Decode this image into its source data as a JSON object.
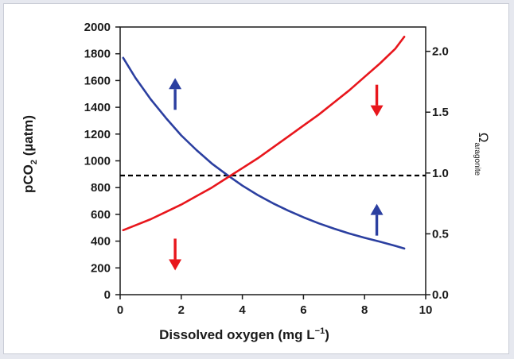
{
  "chart_data": {
    "type": "line",
    "xlabel": {
      "main": "Dissolved oxygen (mg L",
      "sup": "−1",
      "end": ")"
    },
    "ylabel": {
      "main": "pCO",
      "sub": "2",
      "end": " (µatm)"
    },
    "y2label": {
      "main": "Ω",
      "sub": "aragonite"
    },
    "xlim": [
      0,
      10
    ],
    "ylim": [
      0,
      2000
    ],
    "y2lim": [
      0.0,
      2.2
    ],
    "xticks": [
      "0",
      "2",
      "4",
      "6",
      "8",
      "10"
    ],
    "yticks": [
      "0",
      "200",
      "400",
      "600",
      "800",
      "1000",
      "1200",
      "1400",
      "1600",
      "1800",
      "2000"
    ],
    "y2ticks": [
      "0.0",
      "0.5",
      "1.0",
      "1.5",
      "2.0"
    ],
    "grid": false,
    "series": [
      {
        "axis": "left",
        "color": "#2b3fa0",
        "x": [
          0.1,
          0.5,
          1.0,
          1.5,
          2.0,
          2.5,
          3.0,
          3.5,
          4.0,
          4.5,
          5.0,
          5.5,
          6.0,
          6.5,
          7.0,
          7.5,
          8.0,
          8.5,
          9.0,
          9.3
        ],
        "y": [
          1770,
          1620,
          1460,
          1320,
          1190,
          1080,
          980,
          895,
          815,
          745,
          683,
          628,
          578,
          533,
          493,
          457,
          425,
          396,
          365,
          345
        ]
      },
      {
        "axis": "right",
        "color": "#e8161c",
        "x": [
          0.1,
          0.5,
          1.0,
          1.5,
          2.0,
          2.5,
          3.0,
          3.5,
          4.0,
          4.5,
          5.0,
          5.5,
          6.0,
          6.5,
          7.0,
          7.5,
          8.0,
          8.5,
          9.0,
          9.3
        ],
        "y": [
          0.53,
          0.57,
          0.62,
          0.68,
          0.74,
          0.81,
          0.88,
          0.96,
          1.04,
          1.12,
          1.21,
          1.3,
          1.39,
          1.48,
          1.58,
          1.68,
          1.79,
          1.9,
          2.02,
          2.12
        ]
      }
    ],
    "reference_line": {
      "axis": "left",
      "y": 890,
      "style": "dashed",
      "color": "#000000"
    },
    "arrows": [
      {
        "x": 1.8,
        "y": 1500,
        "direction": "up",
        "color": "#2b3fa0"
      },
      {
        "x": 1.8,
        "y": 300,
        "direction": "down",
        "color": "#e8161c"
      },
      {
        "x": 8.4,
        "y": 1450,
        "direction": "down",
        "color": "#e8161c"
      },
      {
        "x": 8.4,
        "y": 560,
        "direction": "up",
        "color": "#2b3fa0"
      }
    ]
  }
}
